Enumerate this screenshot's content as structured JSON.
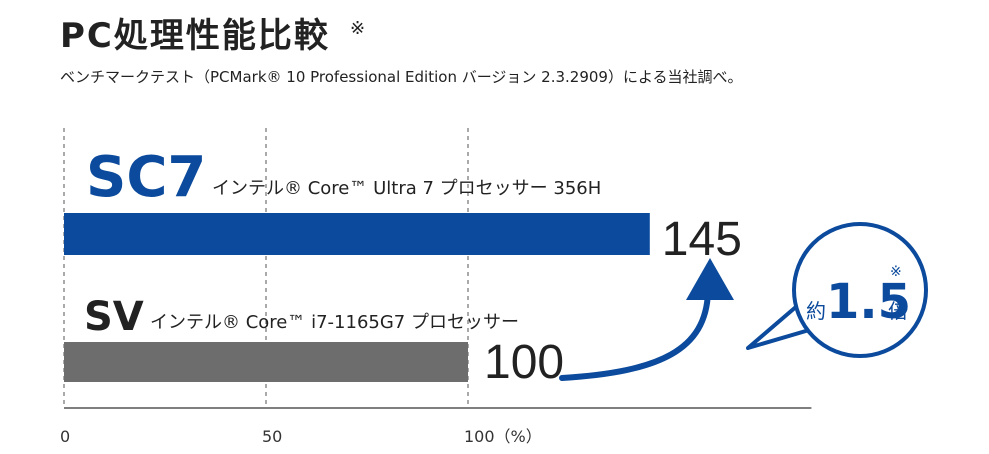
{
  "header": {
    "title": "PC処理性能比較",
    "title_mark": "※",
    "subtitle": "ベンチマークテスト（PCMark® 10  Professional Edition バージョン 2.3.2909）による当社調べ。"
  },
  "chart_data": {
    "type": "bar",
    "orientation": "horizontal",
    "categories": [
      "SC7",
      "SV"
    ],
    "category_descriptions": [
      "インテル® Core™ Ultra 7 プロセッサー 356H",
      "インテル® Core™ i7-1165G7 プロセッサー"
    ],
    "values": [
      145,
      100
    ],
    "value_labels": [
      "145",
      "100"
    ],
    "bar_colors": [
      "#0b4a9c",
      "#6d6d6d"
    ],
    "label_colors": [
      "#0b4a9c",
      "#222222"
    ],
    "xlim": [
      0,
      185
    ],
    "xticks": [
      0,
      50,
      100
    ],
    "xtick_labels": [
      "0",
      "50",
      "100（%）"
    ],
    "grid": "vertical-dashed",
    "annotation": {
      "prefix": "約",
      "value": "1.5",
      "mark": "※",
      "suffix": "倍",
      "color": "#0b4a9c"
    }
  }
}
